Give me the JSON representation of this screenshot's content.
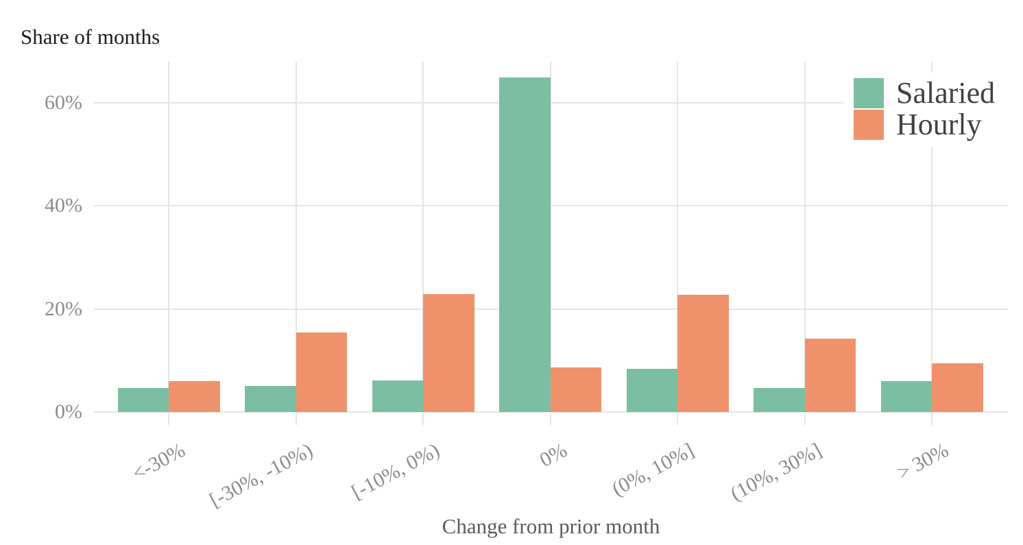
{
  "title": "Share of months",
  "xlabel": "Change from prior month",
  "y_axis": {
    "tick_suffix": "%"
  },
  "legend": {
    "items": [
      {
        "label": "Salaried",
        "color": "#7bbea2"
      },
      {
        "label": "Hourly",
        "color": "#ef926b"
      }
    ]
  },
  "chart_data": {
    "type": "bar",
    "title": "Share of months",
    "xlabel": "Change from prior month",
    "ylabel": "Share of months",
    "categories": [
      "<-30%",
      "[-30%, -10%)",
      "[-10%, 0%)",
      "0%",
      "(0%, 10%]",
      "(10%, 30%]",
      "> 30%"
    ],
    "series": [
      {
        "name": "Salaried",
        "color": "#7bbea2",
        "values": [
          4.6,
          5.0,
          6.1,
          65.0,
          8.4,
          4.6,
          6.0
        ]
      },
      {
        "name": "Hourly",
        "color": "#ef926b",
        "values": [
          6.0,
          15.5,
          22.9,
          8.7,
          22.8,
          14.3,
          9.5
        ]
      }
    ],
    "unit": "%",
    "y_ticks": [
      0,
      20,
      40,
      60
    ],
    "ylim": [
      0,
      68
    ],
    "grid": true,
    "legend_position": "top-right",
    "gridline_color": "#e4e4e4",
    "tick_label_color": "#8c8c8c",
    "axis_title_color": "#5a5a5a"
  }
}
